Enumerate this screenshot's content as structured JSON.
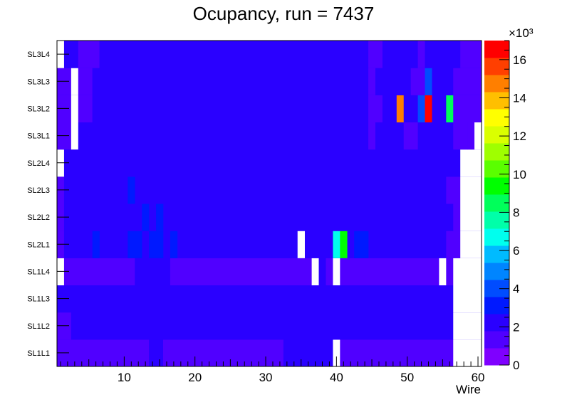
{
  "chart_data": {
    "type": "heatmap",
    "title": "Ocupancy, run = 7437",
    "xlabel": "Wire",
    "ylabel": "",
    "xlim": [
      0.5,
      60.5
    ],
    "x_tick_labels": [
      "10",
      "20",
      "30",
      "40",
      "50",
      "60"
    ],
    "x_tick_values": [
      10,
      20,
      30,
      40,
      50,
      60
    ],
    "y_categories": [
      "SL1L1",
      "SL1L2",
      "SL1L3",
      "SL1L4",
      "SL2L1",
      "SL2L2",
      "SL2L3",
      "SL2L4",
      "SL3L1",
      "SL3L2",
      "SL3L3",
      "SL3L4"
    ],
    "z_range": [
      0,
      17000
    ],
    "z_exponent_label": "×10³",
    "z_tick_labels": [
      "0",
      "2",
      "4",
      "6",
      "8",
      "10",
      "12",
      "14",
      "16"
    ],
    "z_tick_values": [
      0,
      2000,
      4000,
      6000,
      8000,
      10000,
      12000,
      14000,
      16000
    ],
    "z_palette": [
      "#7f00ff",
      "#5000ff",
      "#2a00ff",
      "#0019ff",
      "#004cff",
      "#0085ff",
      "#00bbff",
      "#00ffee",
      "#00ffa9",
      "#00ff5a",
      "#00ff00",
      "#5aff00",
      "#9fff00",
      "#daff00",
      "#ffff00",
      "#ffbf00",
      "#ff7f00",
      "#ff3f00",
      "#ff0000"
    ],
    "default_value": 1800,
    "rows": [
      {
        "layer": "SL1L1",
        "segments": [
          {
            "from": 1,
            "to": 13,
            "value": 1000
          },
          {
            "from": 14,
            "to": 15,
            "value": 1800
          },
          {
            "from": 16,
            "to": 32,
            "value": 1000
          },
          {
            "from": 33,
            "to": 39,
            "value": 1800
          },
          {
            "from": 40,
            "to": 40,
            "value": 0
          },
          {
            "from": 41,
            "to": 56,
            "value": 1000
          },
          {
            "from": 57,
            "to": 60,
            "value": 0
          }
        ]
      },
      {
        "layer": "SL1L2",
        "segments": [
          {
            "from": 1,
            "to": 2,
            "value": 1000
          },
          {
            "from": 3,
            "to": 56,
            "value": 1800
          },
          {
            "from": 57,
            "to": 60,
            "value": 0
          }
        ]
      },
      {
        "layer": "SL1L3",
        "segments": [
          {
            "from": 1,
            "to": 56,
            "value": 1800
          },
          {
            "from": 57,
            "to": 60,
            "value": 0
          }
        ]
      },
      {
        "layer": "SL1L4",
        "segments": [
          {
            "from": 1,
            "to": 1,
            "value": 0
          },
          {
            "from": 2,
            "to": 11,
            "value": 1000
          },
          {
            "from": 12,
            "to": 16,
            "value": 1800
          },
          {
            "from": 15,
            "to": 15,
            "value": 2500
          },
          {
            "from": 17,
            "to": 36,
            "value": 1000
          },
          {
            "from": 37,
            "to": 37,
            "value": 0
          },
          {
            "from": 38,
            "to": 38,
            "value": 1800
          },
          {
            "from": 39,
            "to": 39,
            "value": 1000
          },
          {
            "from": 40,
            "to": 40,
            "value": 0
          },
          {
            "from": 41,
            "to": 54,
            "value": 1000
          },
          {
            "from": 55,
            "to": 55,
            "value": 0
          },
          {
            "from": 56,
            "to": 56,
            "value": 1000
          },
          {
            "from": 57,
            "to": 60,
            "value": 0
          }
        ]
      },
      {
        "layer": "SL2L1",
        "segments": [
          {
            "from": 1,
            "to": 1,
            "value": 1000
          },
          {
            "from": 2,
            "to": 56,
            "value": 1800
          },
          {
            "from": 6,
            "to": 6,
            "value": 2700
          },
          {
            "from": 11,
            "to": 12,
            "value": 2700
          },
          {
            "from": 14,
            "to": 15,
            "value": 2700
          },
          {
            "from": 17,
            "to": 17,
            "value": 2700
          },
          {
            "from": 35,
            "to": 35,
            "value": 0
          },
          {
            "from": 40,
            "to": 40,
            "value": 6500
          },
          {
            "from": 41,
            "to": 41,
            "value": 9000
          },
          {
            "from": 43,
            "to": 44,
            "value": 2700
          },
          {
            "from": 56,
            "to": 57,
            "value": 1000
          },
          {
            "from": 58,
            "to": 60,
            "value": 0
          }
        ]
      },
      {
        "layer": "SL2L2",
        "segments": [
          {
            "from": 1,
            "to": 1,
            "value": 1000
          },
          {
            "from": 2,
            "to": 56,
            "value": 1800
          },
          {
            "from": 13,
            "to": 13,
            "value": 2700
          },
          {
            "from": 15,
            "to": 15,
            "value": 2700
          },
          {
            "from": 57,
            "to": 57,
            "value": 1000
          },
          {
            "from": 58,
            "to": 60,
            "value": 0
          }
        ]
      },
      {
        "layer": "SL2L3",
        "segments": [
          {
            "from": 1,
            "to": 1,
            "value": 1000
          },
          {
            "from": 2,
            "to": 56,
            "value": 1800
          },
          {
            "from": 11,
            "to": 11,
            "value": 2700
          },
          {
            "from": 56,
            "to": 57,
            "value": 1000
          },
          {
            "from": 58,
            "to": 60,
            "value": 0
          }
        ]
      },
      {
        "layer": "SL2L4",
        "segments": [
          {
            "from": 1,
            "to": 1,
            "value": 0
          },
          {
            "from": 2,
            "to": 57,
            "value": 1800
          },
          {
            "from": 58,
            "to": 60,
            "value": 0
          }
        ]
      },
      {
        "layer": "SL3L1",
        "segments": [
          {
            "from": 1,
            "to": 1,
            "value": 1000
          },
          {
            "from": 2,
            "to": 2,
            "value": 1000
          },
          {
            "from": 3,
            "to": 3,
            "value": 0
          },
          {
            "from": 4,
            "to": 44,
            "value": 1800
          },
          {
            "from": 45,
            "to": 45,
            "value": 1000
          },
          {
            "from": 46,
            "to": 49,
            "value": 1800
          },
          {
            "from": 50,
            "to": 51,
            "value": 1000
          },
          {
            "from": 52,
            "to": 56,
            "value": 1800
          },
          {
            "from": 57,
            "to": 58,
            "value": 1000
          },
          {
            "from": 59,
            "to": 59,
            "value": 1000
          },
          {
            "from": 60,
            "to": 60,
            "value": 0
          }
        ]
      },
      {
        "layer": "SL3L2",
        "segments": [
          {
            "from": 1,
            "to": 2,
            "value": 1000
          },
          {
            "from": 3,
            "to": 3,
            "value": 0
          },
          {
            "from": 4,
            "to": 5,
            "value": 1000
          },
          {
            "from": 6,
            "to": 44,
            "value": 1800
          },
          {
            "from": 45,
            "to": 46,
            "value": 1000
          },
          {
            "from": 47,
            "to": 48,
            "value": 1800
          },
          {
            "from": 49,
            "to": 49,
            "value": 15000
          },
          {
            "from": 50,
            "to": 51,
            "value": 1800
          },
          {
            "from": 52,
            "to": 52,
            "value": 4000
          },
          {
            "from": 53,
            "to": 53,
            "value": 17000
          },
          {
            "from": 54,
            "to": 55,
            "value": 1800
          },
          {
            "from": 56,
            "to": 56,
            "value": 8300
          },
          {
            "from": 57,
            "to": 60,
            "value": 1000
          }
        ]
      },
      {
        "layer": "SL3L3",
        "segments": [
          {
            "from": 1,
            "to": 1,
            "value": 1000
          },
          {
            "from": 2,
            "to": 2,
            "value": 1000
          },
          {
            "from": 3,
            "to": 3,
            "value": 0
          },
          {
            "from": 4,
            "to": 5,
            "value": 1000
          },
          {
            "from": 6,
            "to": 44,
            "value": 1800
          },
          {
            "from": 45,
            "to": 45,
            "value": 1000
          },
          {
            "from": 46,
            "to": 50,
            "value": 1800
          },
          {
            "from": 51,
            "to": 52,
            "value": 1000
          },
          {
            "from": 53,
            "to": 53,
            "value": 3800
          },
          {
            "from": 54,
            "to": 56,
            "value": 1800
          },
          {
            "from": 57,
            "to": 60,
            "value": 1000
          }
        ]
      },
      {
        "layer": "SL3L4",
        "segments": [
          {
            "from": 1,
            "to": 1,
            "value": 0
          },
          {
            "from": 2,
            "to": 3,
            "value": 1800
          },
          {
            "from": 4,
            "to": 6,
            "value": 1000
          },
          {
            "from": 7,
            "to": 44,
            "value": 1800
          },
          {
            "from": 45,
            "to": 46,
            "value": 1000
          },
          {
            "from": 47,
            "to": 51,
            "value": 1800
          },
          {
            "from": 52,
            "to": 52,
            "value": 1000
          },
          {
            "from": 53,
            "to": 57,
            "value": 1800
          },
          {
            "from": 58,
            "to": 60,
            "value": 1000
          }
        ]
      }
    ]
  }
}
